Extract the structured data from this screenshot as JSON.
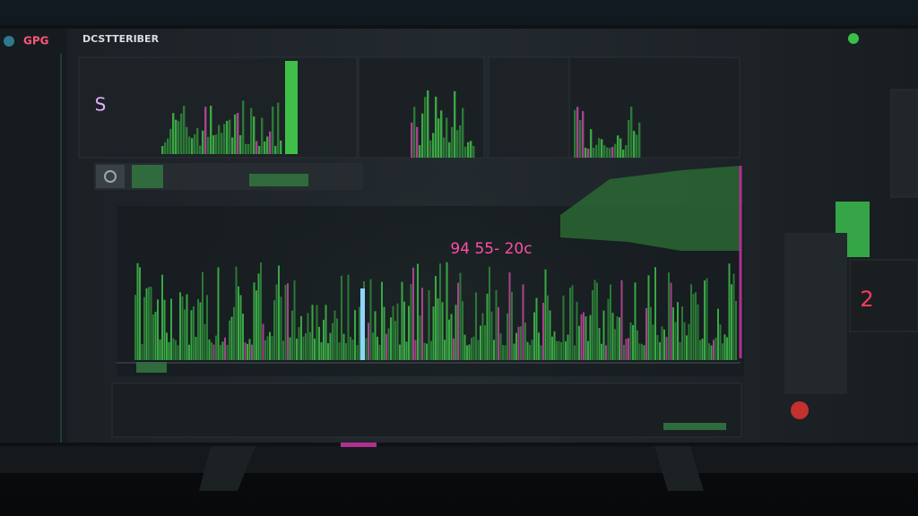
{
  "header": {
    "logo": "GPG",
    "title": "DCSTTERIBER"
  },
  "panel": {
    "marker": "S"
  },
  "main_chart": {
    "readout": "94 55- 20c"
  },
  "side_panel": {
    "value": "2"
  }
}
